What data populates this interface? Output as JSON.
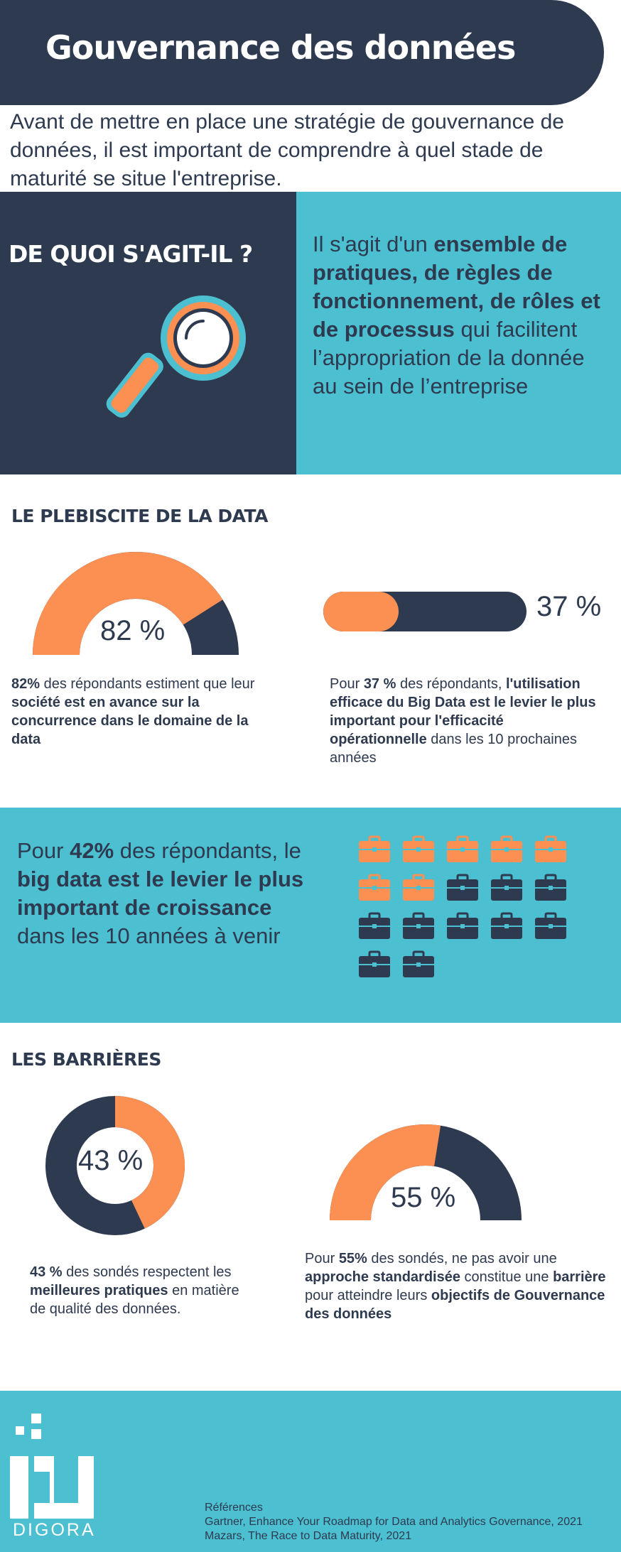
{
  "header": {
    "title": "Gouvernance des données",
    "intro": "Avant de mettre en place une stratégie de gouvernance de données, il est important de comprendre à quel stade de maturité se situe l'entreprise."
  },
  "definition": {
    "heading": "DE QUOI S'AGIT-IL ?",
    "text_1": "Il s'agit d'un ",
    "text_2": "ensemble de pratiques, de règles de fonctionnement, de rôles et de processus",
    "text_3": " qui facilitent l’appropriation de la donnée au sein de l’entreprise",
    "icon": "magnifier-icon"
  },
  "plebiscite": {
    "heading": "LE PLEBISCITE DE LA DATA",
    "gauge": {
      "value": 0.82,
      "label": "82 %",
      "text_1": "82%",
      "text_2": " des répondants estiment que leur ",
      "text_3": "société est en avance sur la concurrence dans le domaine de la data"
    },
    "bar": {
      "value": 0.37,
      "label": "37 %",
      "text_1": "Pour ",
      "text_2": "37 %",
      "text_3": " des répondants, ",
      "text_4": "l'utilisation efficace du Big Data est le levier le plus important pour l'efficacité opérationnelle",
      "text_5": " dans les 10 prochaines années"
    }
  },
  "growth": {
    "text_1": "Pour ",
    "text_2": "42%",
    "text_3": " des répondants, le ",
    "text_4": "big data est le levier le plus important de croissance",
    "text_5": " dans les 10 années à venir",
    "icons_total": 17,
    "icons_highlighted": 7,
    "icon": "briefcase-icon"
  },
  "barriers": {
    "heading": "LES BARRIÈRES",
    "donut": {
      "value": 0.43,
      "label": "43 %",
      "text_1": "43 %",
      "text_2": " des sondés respectent les ",
      "text_3": "meilleures pratiques",
      "text_4": " en matière de qualité des données."
    },
    "gauge": {
      "value": 0.55,
      "label": "55 %",
      "text_1": "Pour ",
      "text_2": "55%",
      "text_3": " des sondés, ne pas avoir une ",
      "text_4": "approche standardisée",
      "text_5": " constitue une ",
      "text_6": "barrière",
      "text_7": " pour atteindre leurs ",
      "text_8": "objectifs de Gouvernance des données"
    }
  },
  "footer": {
    "logo_word": "DIGORA",
    "refs_title": "Références",
    "ref_1": "Gartner, Enhance Your Roadmap for Data and Analytics Governance, 2021",
    "ref_2": "Mazars, The Race to Data Maturity, 2021"
  },
  "colors": {
    "navy": "#2e3a4f",
    "teal": "#4cbfd0",
    "orange": "#fc8f52",
    "white": "#ffffff"
  }
}
